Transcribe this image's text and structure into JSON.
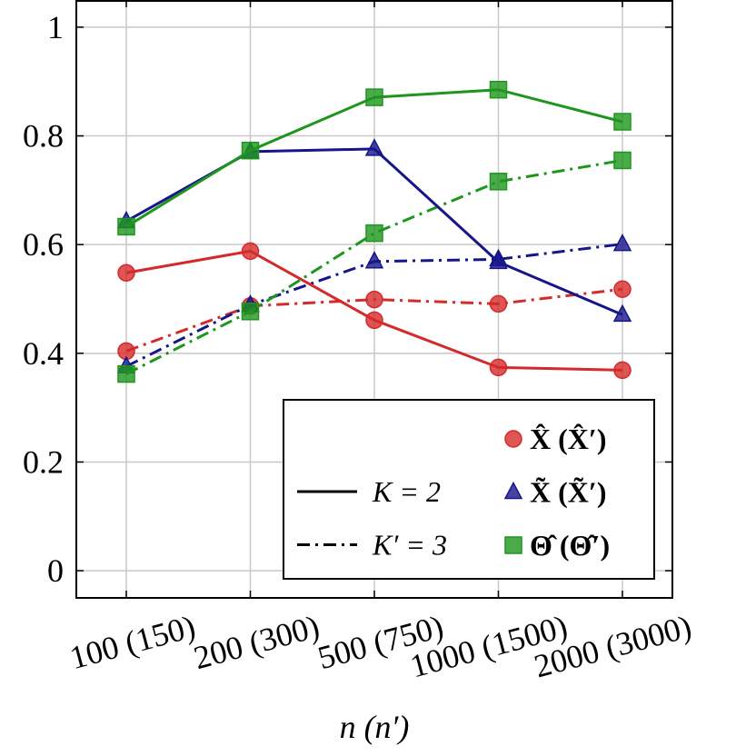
{
  "chart_data": {
    "type": "line",
    "x_label": "n (n′)",
    "categories": [
      "100 (150)",
      "200 (300)",
      "500 (750)",
      "1000 (1500)",
      "2000 (3000)"
    ],
    "ylim": [
      -0.05,
      1.05
    ],
    "yticks": [
      0,
      0.2,
      0.4,
      0.6,
      0.8,
      1
    ],
    "grid": true,
    "legend": "lower right",
    "styles": [
      {
        "name": "K = 2",
        "dash": "solid"
      },
      {
        "name": "K′ = 3",
        "dash": "dashdot"
      }
    ],
    "series": [
      {
        "name": "X̂ (X̂′)",
        "color": "#d42a2a",
        "marker": "circle",
        "values": [
          0.548,
          0.588,
          0.461,
          0.374,
          0.369
        ],
        "values_prime": [
          0.404,
          0.487,
          0.499,
          0.491,
          0.518
        ]
      },
      {
        "name": "X̃ (X̃′)",
        "color": "#16168a",
        "marker": "triangle",
        "values": [
          0.643,
          0.771,
          0.776,
          0.568,
          0.471
        ],
        "values_prime": [
          0.376,
          0.489,
          0.569,
          0.573,
          0.601
        ]
      },
      {
        "name": "Θ̂ (Θ̂′)",
        "color": "#1e961e",
        "marker": "square",
        "values": [
          0.633,
          0.773,
          0.871,
          0.885,
          0.826
        ],
        "values_prime": [
          0.362,
          0.477,
          0.621,
          0.716,
          0.755
        ]
      }
    ]
  }
}
